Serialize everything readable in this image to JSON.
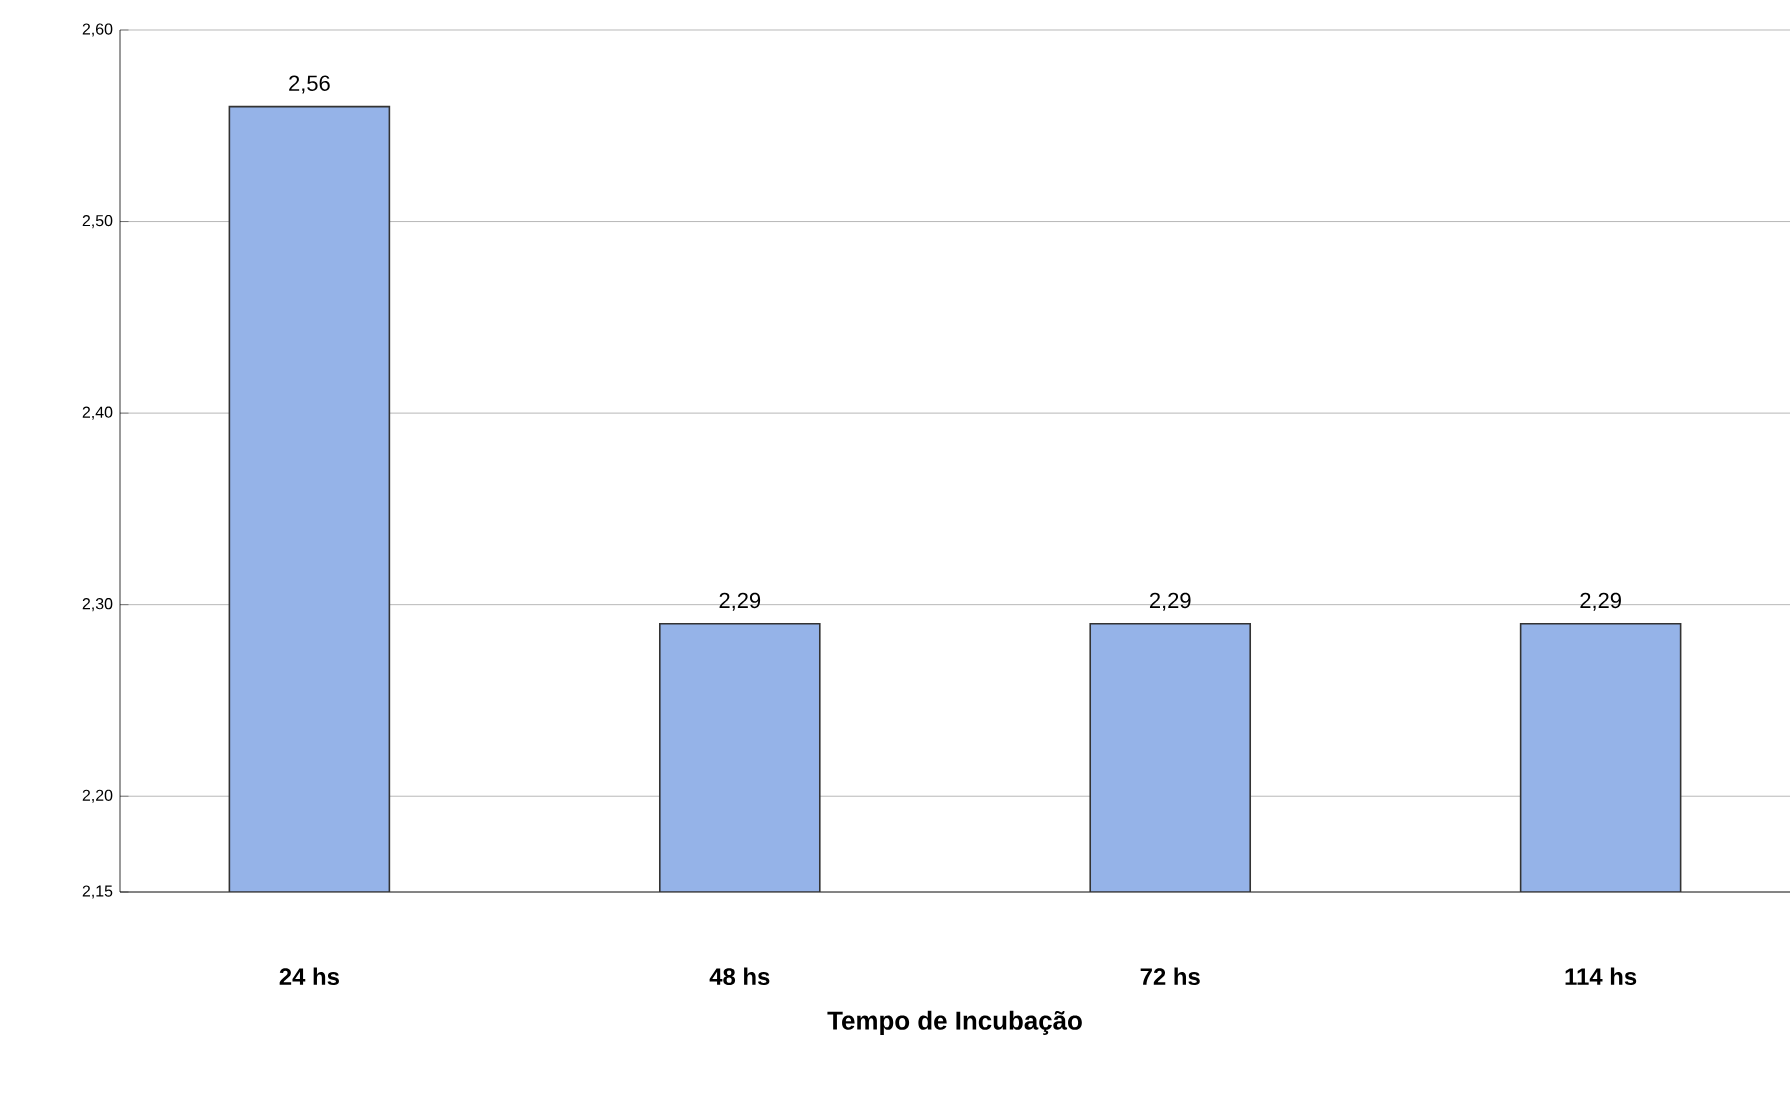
{
  "chart_data": {
    "type": "bar",
    "xlabel": "Tempo de Incubação",
    "categories": [
      "24 hs",
      "48 hs",
      "72 hs",
      "114 hs"
    ],
    "values": [
      2.56,
      2.29,
      2.29,
      2.29
    ],
    "value_labels": [
      "2,56",
      "2,29",
      "2,29",
      "2,29"
    ],
    "color": "#95b3e8",
    "ylim": [
      2.15,
      2.6
    ],
    "yticks": [
      {
        "value": 2.15,
        "label": "2,15"
      },
      {
        "value": 2.2,
        "label": "2,20"
      },
      {
        "value": 2.3,
        "label": "2,30"
      },
      {
        "value": 2.4,
        "label": "2,40"
      },
      {
        "value": 2.5,
        "label": "2,50"
      },
      {
        "value": 2.6,
        "label": "2,60"
      }
    ],
    "grid": "y"
  }
}
